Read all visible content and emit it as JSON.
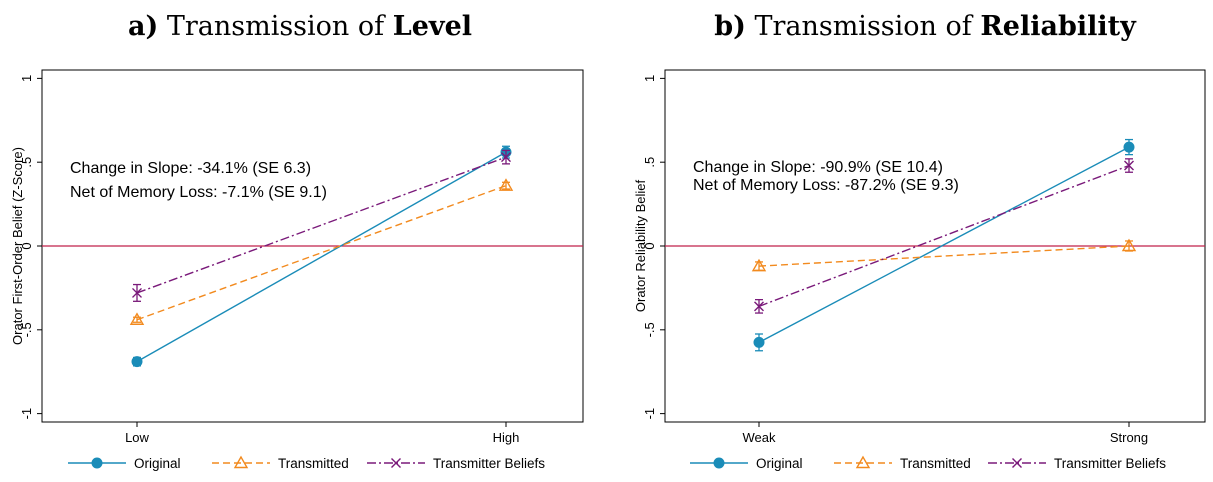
{
  "colors": {
    "original": "#1a8cb8",
    "transmitted": "#f28a1e",
    "transmitter_beliefs": "#7a1a7a",
    "zero_line": "#c0204a",
    "axis": "#000000"
  },
  "legend_entries": [
    "Original",
    "Transmitted",
    "Transmitter Beliefs"
  ],
  "chart_data": [
    {
      "type": "line",
      "title_prefix": "a)",
      "title_mid": " Transmission of ",
      "title_bold": "Level",
      "xlabel": "",
      "ylabel": "Orator First-Order Belief (Z-Score)",
      "categories": [
        "Low",
        "High"
      ],
      "ylim": [
        -1.05,
        1.05
      ],
      "yticks": [
        -1,
        -0.5,
        0,
        0.5,
        1
      ],
      "ytick_labels": [
        "-1",
        "-.5",
        "0",
        ".5",
        "1"
      ],
      "reference_line": 0,
      "grid": false,
      "legend_position": "bottom",
      "annotations": [
        "Change in Slope: -34.1% (SE 6.3)",
        "Net of Memory Loss: -7.1% (SE 9.1)"
      ],
      "series": [
        {
          "name": "Original",
          "values": [
            -0.69,
            0.56
          ],
          "errors": [
            0.025,
            0.035
          ]
        },
        {
          "name": "Transmitted",
          "values": [
            -0.44,
            0.36
          ],
          "errors": [
            0.015,
            0.02
          ]
        },
        {
          "name": "Transmitter Beliefs",
          "values": [
            -0.28,
            0.53
          ],
          "errors": [
            0.05,
            0.04
          ]
        }
      ]
    },
    {
      "type": "line",
      "title_prefix": "b)",
      "title_mid": " Transmission of ",
      "title_bold": "Reliability",
      "xlabel": "",
      "ylabel": "Orator Reliability Belief",
      "categories": [
        "Weak",
        "Strong"
      ],
      "ylim": [
        -1.05,
        1.05
      ],
      "yticks": [
        -1,
        -0.5,
        0,
        0.5,
        1
      ],
      "ytick_labels": [
        "-1",
        "-.5",
        "0",
        ".5",
        "1"
      ],
      "reference_line": 0,
      "grid": false,
      "legend_position": "bottom",
      "annotations": [
        "Change in Slope: -90.9% (SE 10.4)",
        "Net of Memory Loss: -87.2% (SE 9.3)"
      ],
      "series": [
        {
          "name": "Original",
          "values": [
            -0.575,
            0.59
          ],
          "errors": [
            0.05,
            0.045
          ]
        },
        {
          "name": "Transmitted",
          "values": [
            -0.12,
            0.0
          ],
          "errors": [
            0.025,
            0.03
          ]
        },
        {
          "name": "Transmitter Beliefs",
          "values": [
            -0.36,
            0.48
          ],
          "errors": [
            0.04,
            0.04
          ]
        }
      ]
    }
  ]
}
